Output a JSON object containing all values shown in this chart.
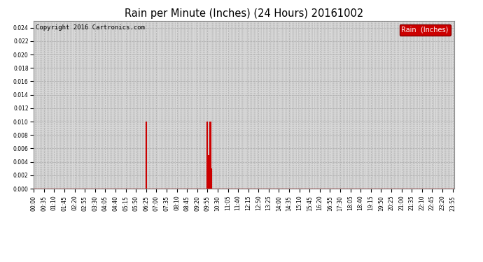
{
  "title": "Rain per Minute (Inches) (24 Hours) 20161002",
  "copyright": "Copyright 2016 Cartronics.com",
  "legend_label": "Rain  (Inches)",
  "legend_bg": "#cc0000",
  "legend_fg": "#ffffff",
  "line_color": "#cc0000",
  "background_color": "#d8d8d8",
  "grid_color": "#aaaaaa",
  "ylim": [
    0.0,
    0.025
  ],
  "yticks": [
    0.0,
    0.002,
    0.004,
    0.006,
    0.008,
    0.01,
    0.012,
    0.014,
    0.016,
    0.018,
    0.02,
    0.022,
    0.024
  ],
  "total_minutes": 1440,
  "rain_events": [
    {
      "minute": 385,
      "value": 0.01
    },
    {
      "minute": 595,
      "value": 0.01
    },
    {
      "minute": 598,
      "value": 0.005
    },
    {
      "minute": 603,
      "value": 0.01
    },
    {
      "minute": 606,
      "value": 0.01
    },
    {
      "minute": 608,
      "value": 0.003
    }
  ],
  "xtick_interval": 35,
  "grid_interval": 5,
  "title_fontsize": 10.5,
  "tick_fontsize": 5.5,
  "copyright_fontsize": 6.5,
  "figwidth": 6.9,
  "figheight": 3.75,
  "dpi": 100
}
